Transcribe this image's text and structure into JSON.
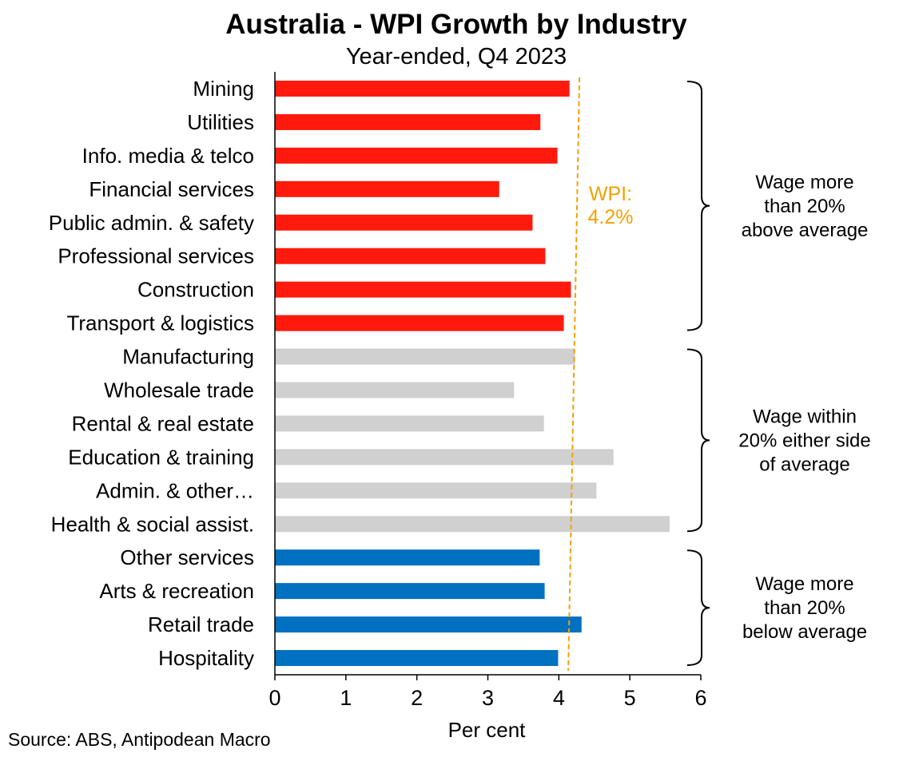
{
  "chart_data": {
    "type": "bar",
    "orientation": "horizontal",
    "title": "Australia - WPI Growth by Industry",
    "subtitle": "Year-ended, Q4 2023",
    "xlabel": "Per cent",
    "xlim": [
      0,
      6
    ],
    "xticks": [
      "0",
      "1",
      "2",
      "3",
      "4",
      "5",
      "6"
    ],
    "grid": false,
    "categories": [
      "Mining",
      "Utilities",
      "Info. media & telco",
      "Financial services",
      "Public admin. & safety",
      "Professional services",
      "Construction",
      "Transport & logistics",
      "Manufacturing",
      "Wholesale trade",
      "Rental & real estate",
      "Education & training",
      "Admin. & other…",
      "Health & social assist.",
      "Other services",
      "Arts & recreation",
      "Retail trade",
      "Hospitality"
    ],
    "values": [
      4.15,
      3.74,
      3.98,
      3.16,
      3.63,
      3.81,
      4.17,
      4.07,
      4.23,
      3.37,
      3.79,
      4.77,
      4.53,
      5.56,
      3.73,
      3.8,
      4.32,
      3.99
    ],
    "groups": [
      {
        "name": "Wage more than 20% above average",
        "label_lines": [
          "Wage more",
          "than 20%",
          "above average"
        ],
        "color": "#ff1a0d",
        "start": 0,
        "end": 7
      },
      {
        "name": "Wage within 20% either side of average",
        "label_lines": [
          "Wage within",
          "20% either side",
          "of average"
        ],
        "color": "#d0d0d0",
        "start": 8,
        "end": 13
      },
      {
        "name": "Wage more than 20% below average",
        "label_lines": [
          "Wage more",
          "than 20%",
          "below average"
        ],
        "color": "#0070c0",
        "start": 14,
        "end": 17
      }
    ],
    "reference_line": {
      "value": 4.2,
      "label_lines": [
        "WPI:",
        "4.2%"
      ],
      "color": "#f5a000",
      "style": "dashed"
    }
  },
  "source": "Source: ABS, Antipodean Macro"
}
